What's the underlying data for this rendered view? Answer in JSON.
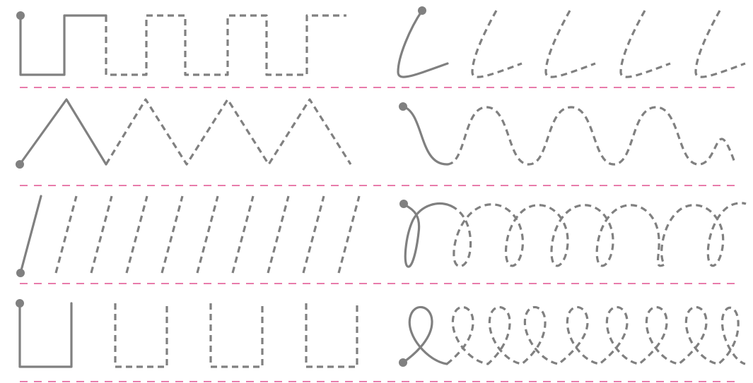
{
  "worksheet": {
    "type": "tracing-practice",
    "colors": {
      "stroke": "#808080",
      "guide_line": "#e0508f",
      "background": "#ffffff"
    },
    "rows": [
      {
        "left": "square-wave",
        "right": "cursive-l-hooks"
      },
      {
        "left": "zigzag",
        "right": "wave-humps"
      },
      {
        "left": "slanted-lines",
        "right": "loop-coils"
      },
      {
        "left": "u-shapes",
        "right": "cursive-e-loops"
      }
    ]
  }
}
